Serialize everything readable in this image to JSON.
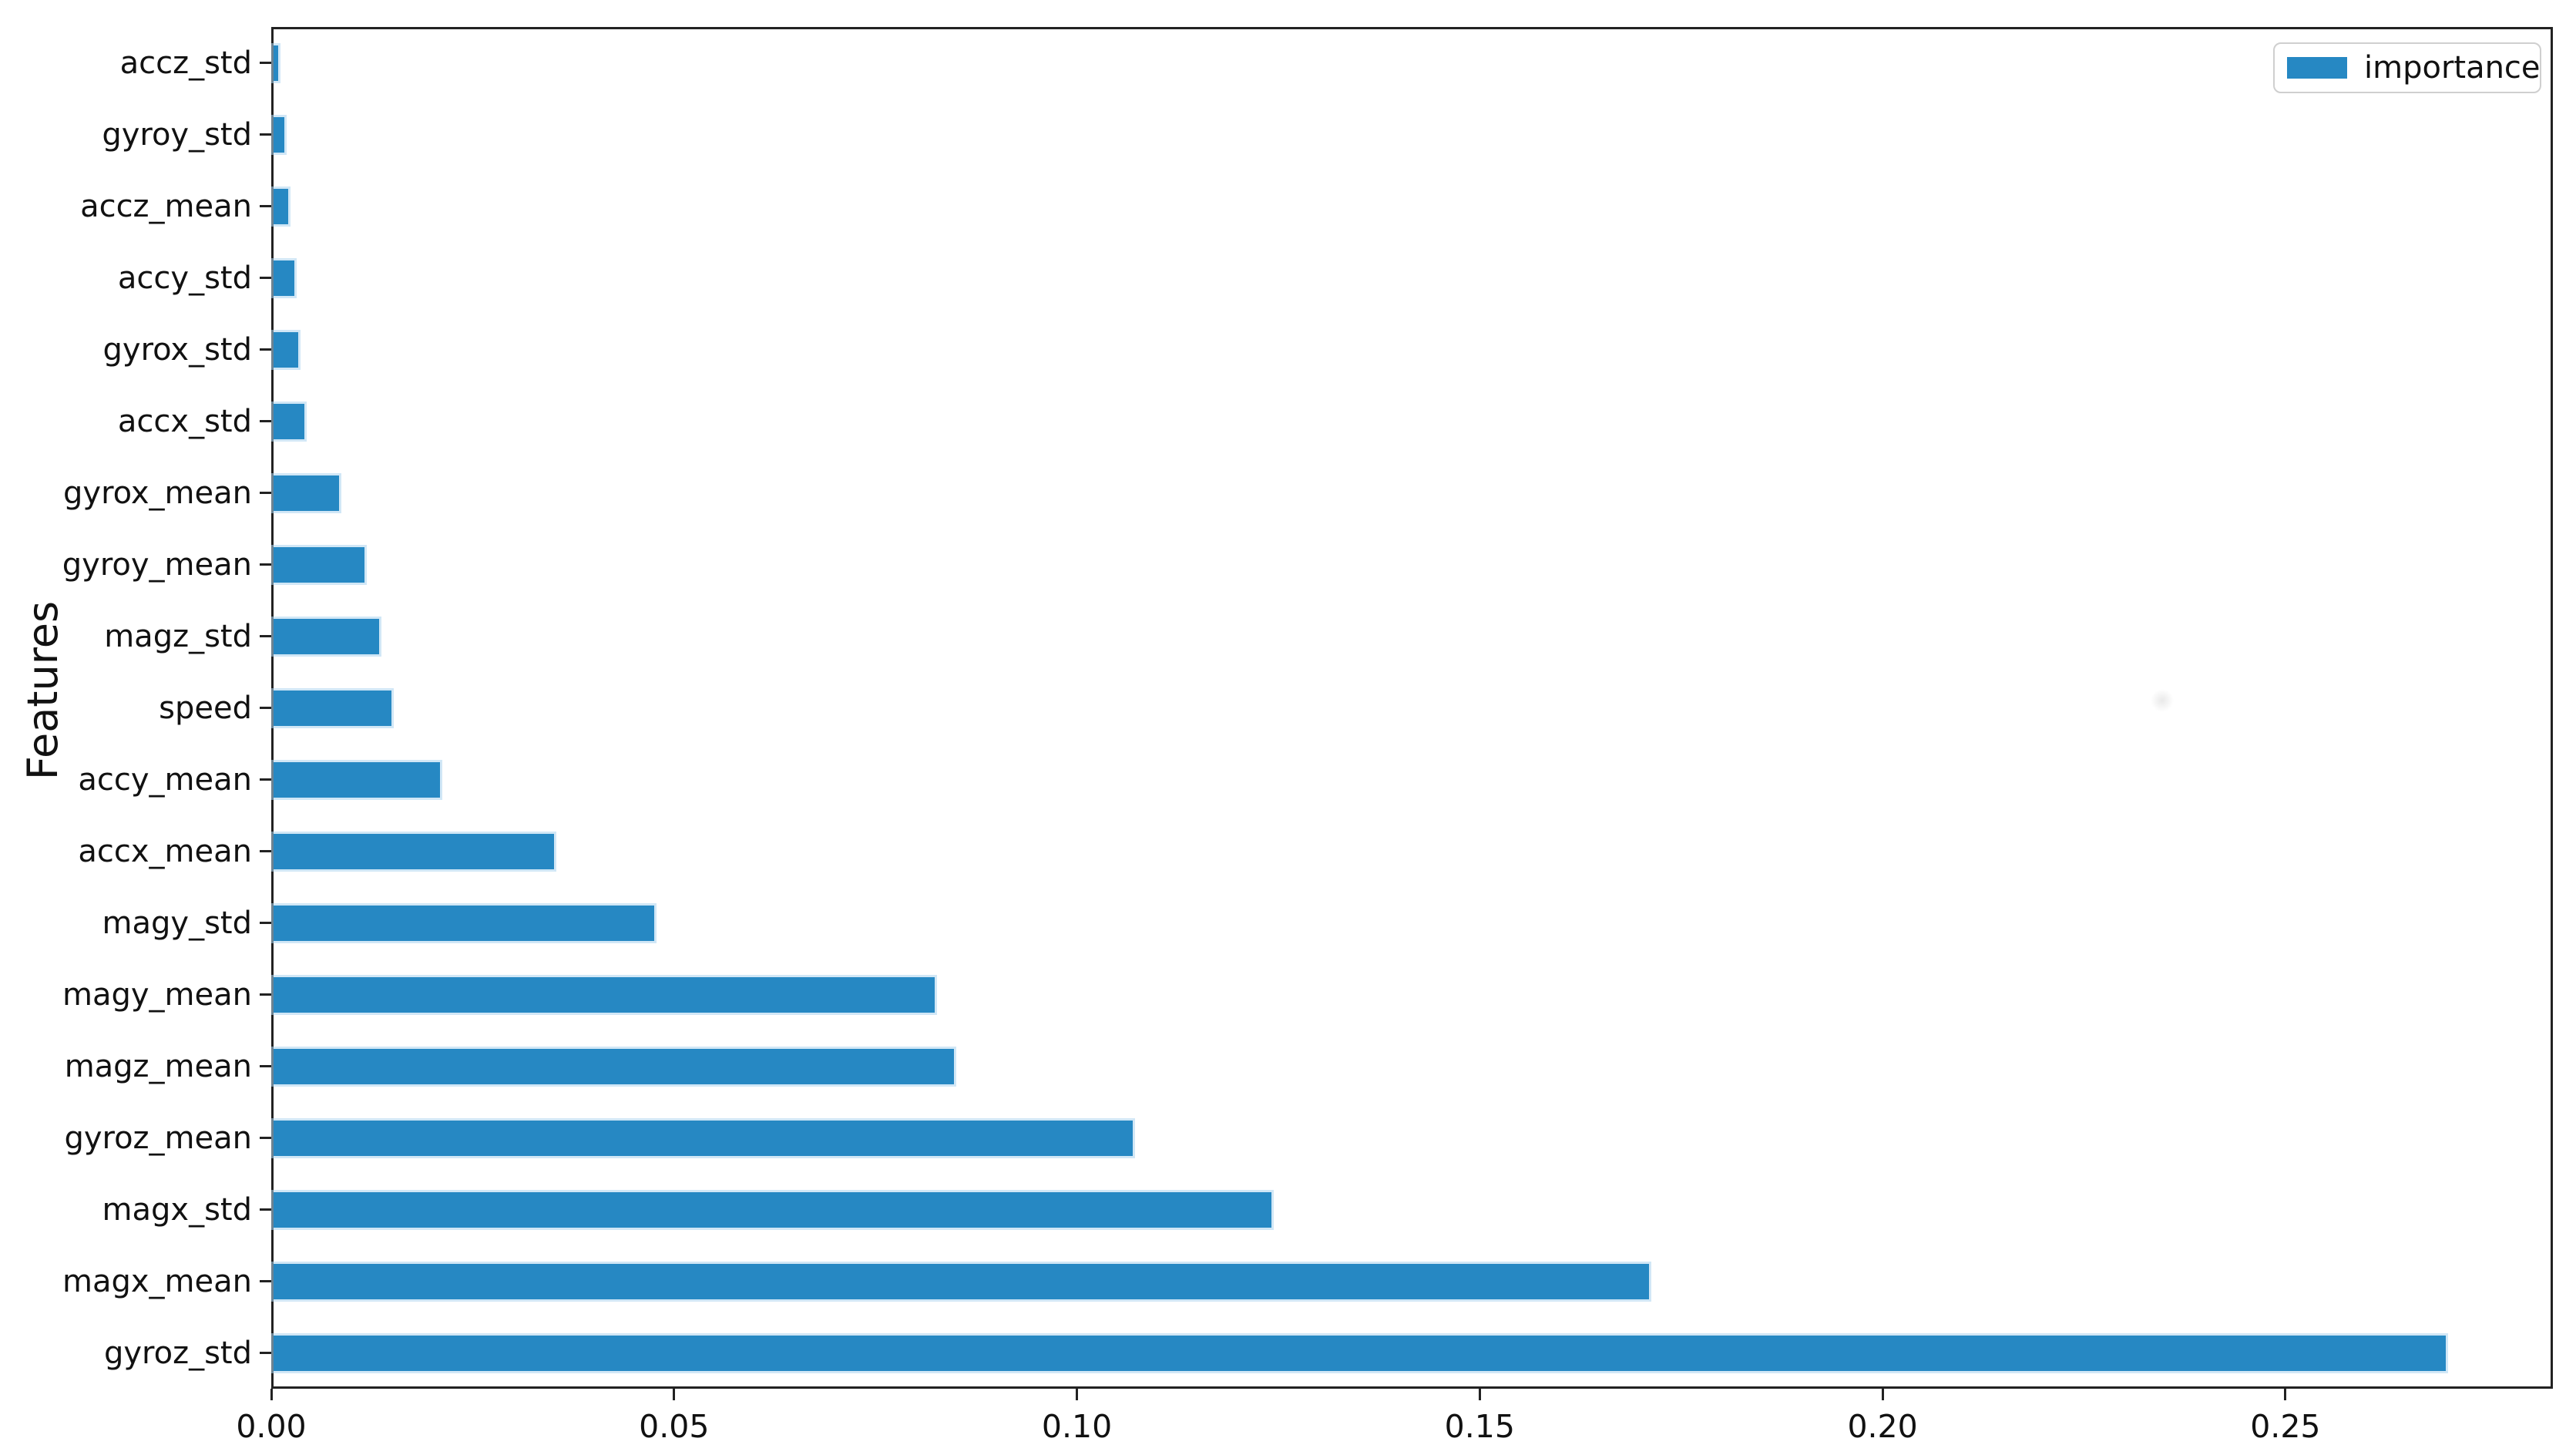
{
  "chart_data": {
    "type": "bar",
    "orientation": "horizontal",
    "title": "",
    "xlabel": "",
    "ylabel": "Features",
    "grid": false,
    "categories_top_to_bottom": [
      "accz_std",
      "gyroy_std",
      "accz_mean",
      "accy_std",
      "gyrox_std",
      "accx_std",
      "gyrox_mean",
      "gyroy_mean",
      "magz_std",
      "speed",
      "accy_mean",
      "accx_mean",
      "magy_std",
      "magy_mean",
      "magz_mean",
      "gyroz_mean",
      "magx_std",
      "magx_mean",
      "gyroz_std"
    ],
    "series": [
      {
        "name": "importance",
        "values_top_to_bottom": [
          0.0006,
          0.0013,
          0.0018,
          0.0026,
          0.0031,
          0.0038,
          0.0081,
          0.0113,
          0.0131,
          0.0146,
          0.0207,
          0.0348,
          0.0472,
          0.0821,
          0.0845,
          0.1066,
          0.1239,
          0.1707,
          0.2696
        ]
      }
    ],
    "x_tick_labels": [
      "0.00",
      "0.05",
      "0.10",
      "0.15",
      "0.20",
      "0.25"
    ],
    "x_tick_values": [
      0.0,
      0.05,
      0.1,
      0.15,
      0.2,
      0.25
    ],
    "xlim": [
      0,
      0.2832
    ],
    "legend": {
      "label": "importance",
      "position": "upper right"
    },
    "colors": {
      "bar": "#2688c3",
      "spine": "#222222",
      "text": "#111111",
      "legend_border": "#cfcfcf",
      "background": "#ffffff"
    }
  }
}
